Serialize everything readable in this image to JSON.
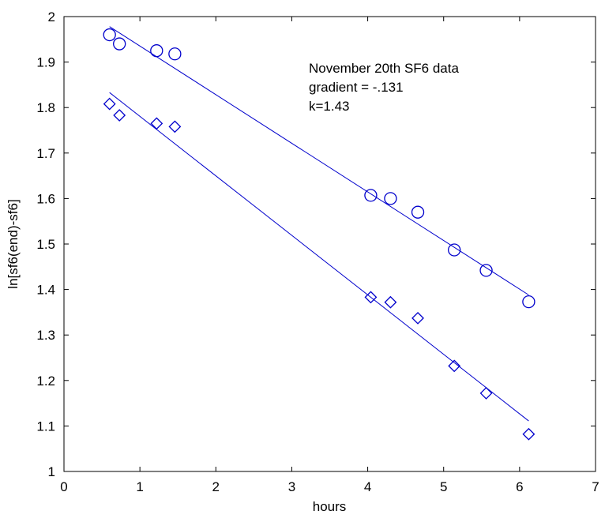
{
  "chart_data": {
    "type": "scatter",
    "title": "",
    "xlabel": "hours",
    "ylabel": "ln[sf6(end)-sf6]",
    "xlim": [
      0,
      7
    ],
    "ylim": [
      1,
      2
    ],
    "x_ticks": [
      "0",
      "1",
      "2",
      "3",
      "4",
      "5",
      "6",
      "7"
    ],
    "y_ticks": [
      "1",
      "1.1",
      "1.2",
      "1.3",
      "1.4",
      "1.5",
      "1.6",
      "1.7",
      "1.8",
      "1.9",
      "2"
    ],
    "grid": false,
    "legend": "none",
    "annotations": [
      "November 20th SF6 data",
      "gradient = -.131",
      "k=1.43"
    ],
    "series": [
      {
        "marker": "circle",
        "color": "#0000cc",
        "x": [
          0.6,
          0.73,
          1.22,
          1.46,
          4.04,
          4.3,
          4.66,
          5.14,
          5.56,
          6.12
        ],
        "y": [
          1.96,
          1.94,
          1.925,
          1.918,
          1.607,
          1.6,
          1.57,
          1.487,
          1.442,
          1.373
        ],
        "fit": {
          "x": [
            0.6,
            6.12
          ],
          "y": [
            1.978,
            1.388
          ]
        }
      },
      {
        "marker": "diamond",
        "color": "#0000cc",
        "x": [
          0.6,
          0.73,
          1.22,
          1.46,
          4.04,
          4.3,
          4.66,
          5.14,
          5.56,
          6.12
        ],
        "y": [
          1.808,
          1.783,
          1.765,
          1.758,
          1.383,
          1.372,
          1.337,
          1.232,
          1.172,
          1.082
        ],
        "fit": {
          "x": [
            0.6,
            6.12
          ],
          "y": [
            1.833,
            1.111
          ]
        }
      }
    ]
  }
}
